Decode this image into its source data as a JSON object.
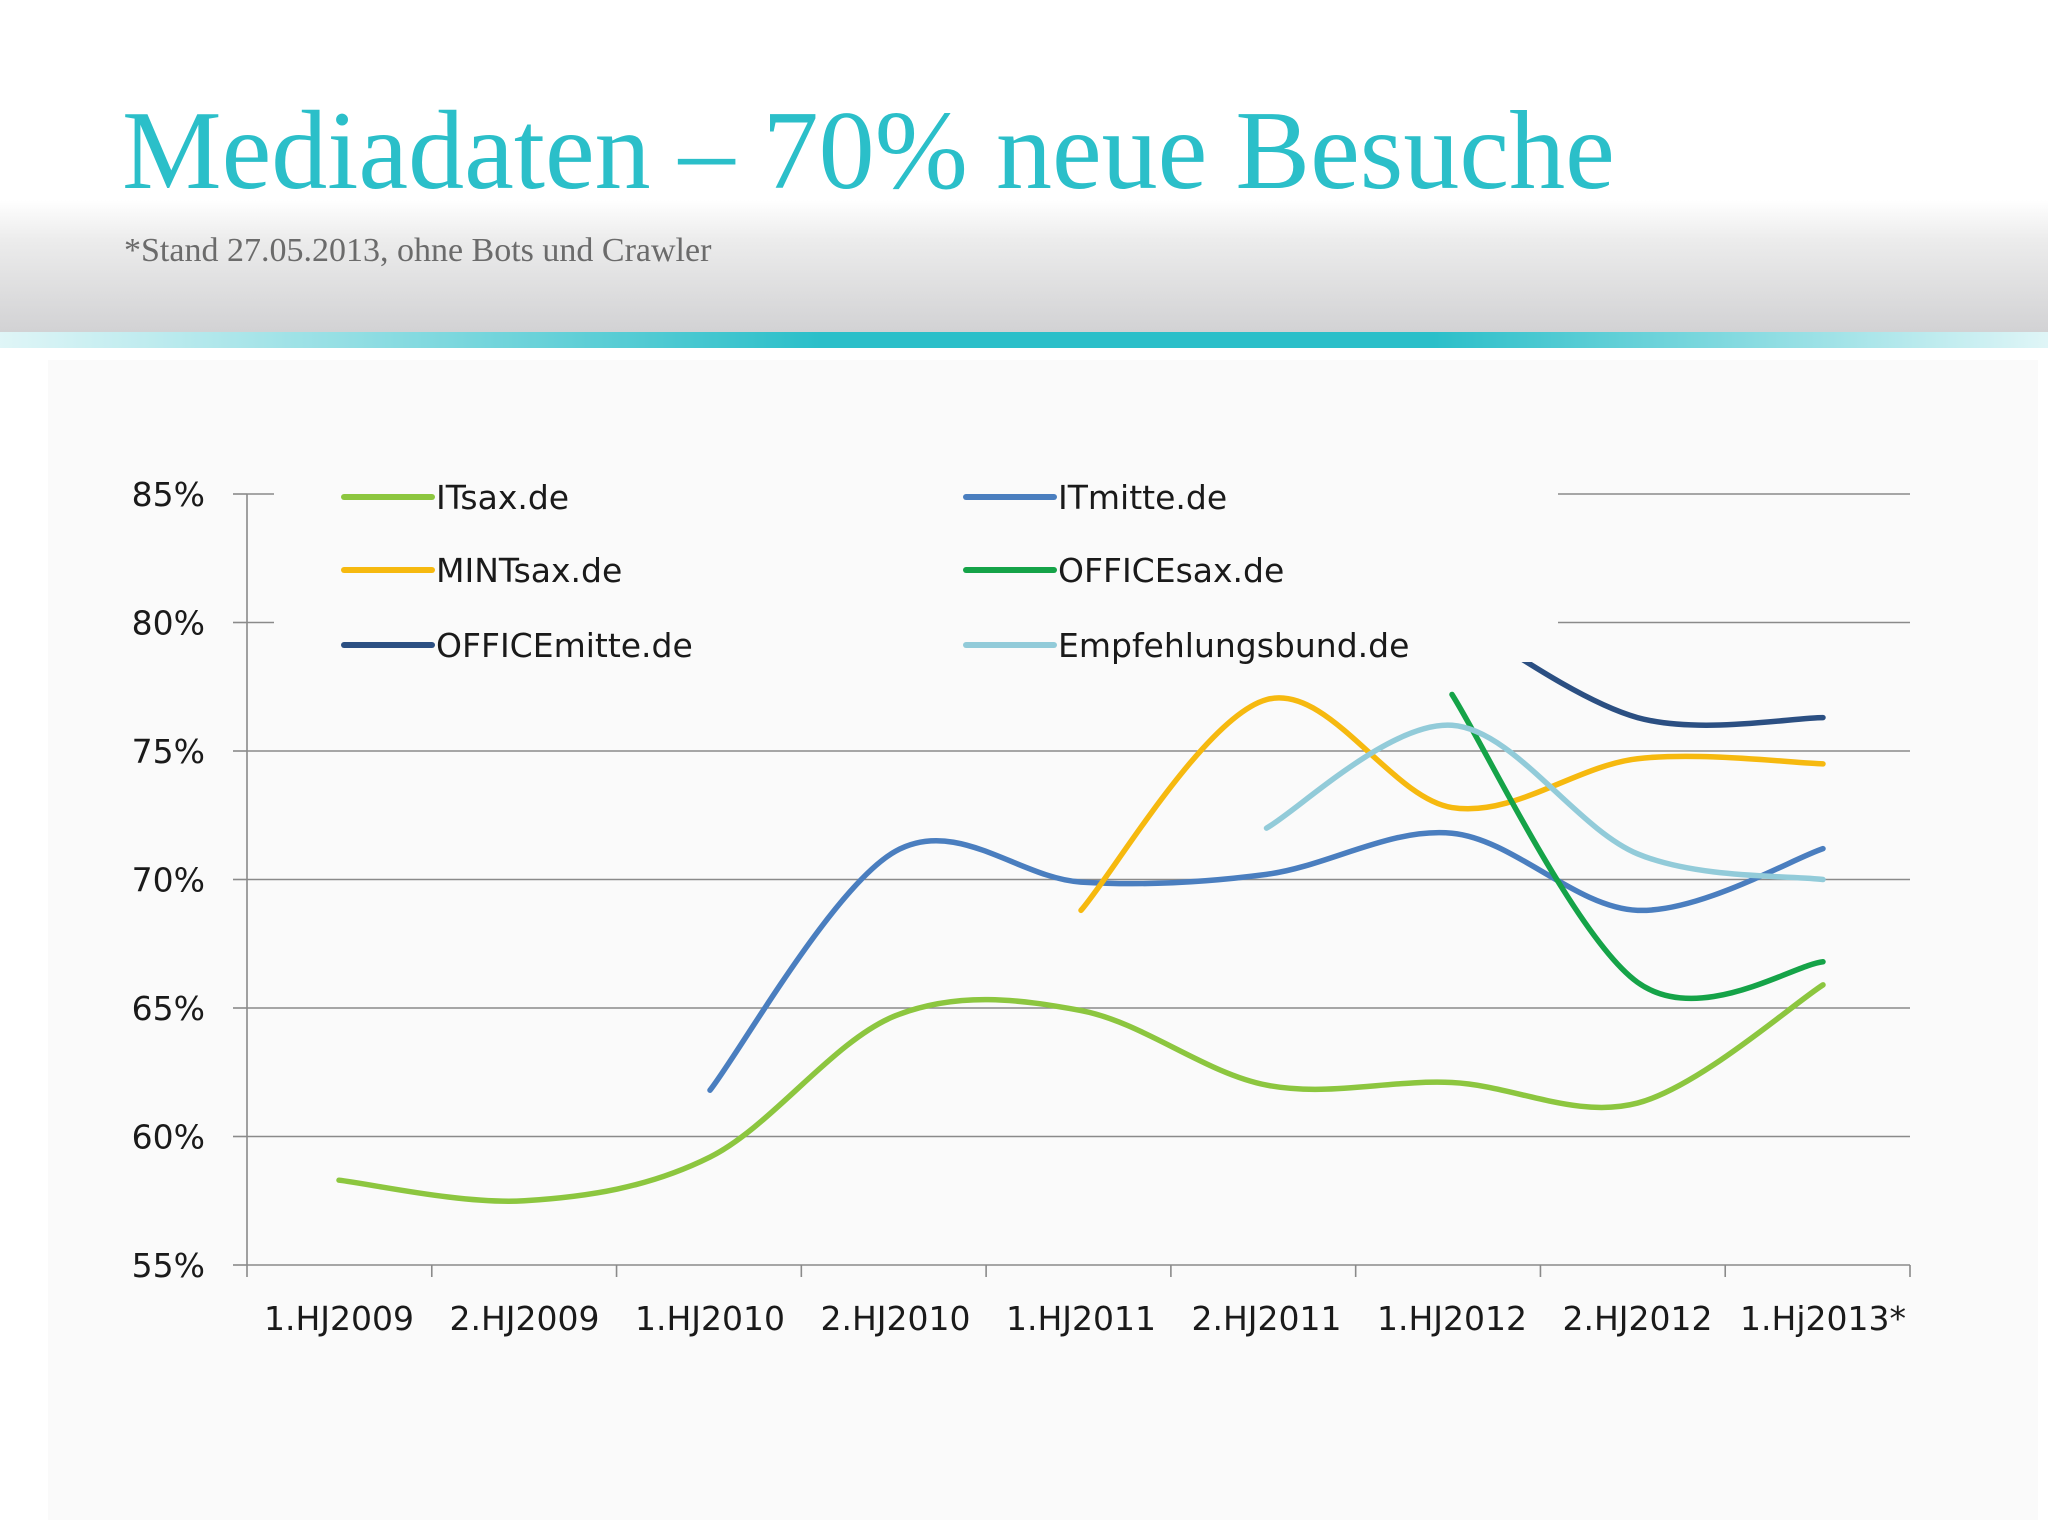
{
  "header": {
    "title": "Mediadaten – 70% neue Besuche",
    "subtitle": "*Stand 27.05.2013, ohne Bots und Crawler",
    "accent_color": "#2bbfc9"
  },
  "chart_data": {
    "type": "line",
    "categories": [
      "1.HJ2009",
      "2.HJ2009",
      "1.HJ2010",
      "2.HJ2010",
      "1.HJ2011",
      "2.HJ2011",
      "1.HJ2012",
      "2.HJ2012",
      "1.Hj2013*"
    ],
    "y_ticks": [
      "85%",
      "80%",
      "75%",
      "70%",
      "65%",
      "60%",
      "55%"
    ],
    "ylim": [
      55,
      85
    ],
    "grid": true,
    "legend_position": "top-left, inside plot, two columns",
    "series": [
      {
        "name": "ITsax.de",
        "color": "#8cc63f",
        "values": [
          58.3,
          57.5,
          59.2,
          64.7,
          64.9,
          62.0,
          62.1,
          61.3,
          65.9
        ]
      },
      {
        "name": "ITmitte.de",
        "color": "#4a7ebf",
        "values": [
          null,
          null,
          61.8,
          71.1,
          69.9,
          70.2,
          71.8,
          68.8,
          71.2
        ]
      },
      {
        "name": "MINTsax.de",
        "color": "#f6b90f",
        "values": [
          null,
          null,
          null,
          null,
          68.8,
          77.0,
          72.8,
          74.7,
          74.5
        ]
      },
      {
        "name": "OFFICEsax.de",
        "color": "#15a348",
        "values": [
          null,
          null,
          null,
          null,
          null,
          null,
          77.2,
          66.0,
          66.8
        ]
      },
      {
        "name": "OFFICEmitte.de",
        "color": "#2b4f82",
        "values": [
          null,
          null,
          null,
          null,
          null,
          null,
          80.3,
          76.3,
          76.3
        ]
      },
      {
        "name": "Empfehlungsbund.de",
        "color": "#92cbd9",
        "values": [
          null,
          null,
          null,
          null,
          null,
          72.0,
          76.0,
          71.0,
          70.0
        ]
      }
    ]
  }
}
